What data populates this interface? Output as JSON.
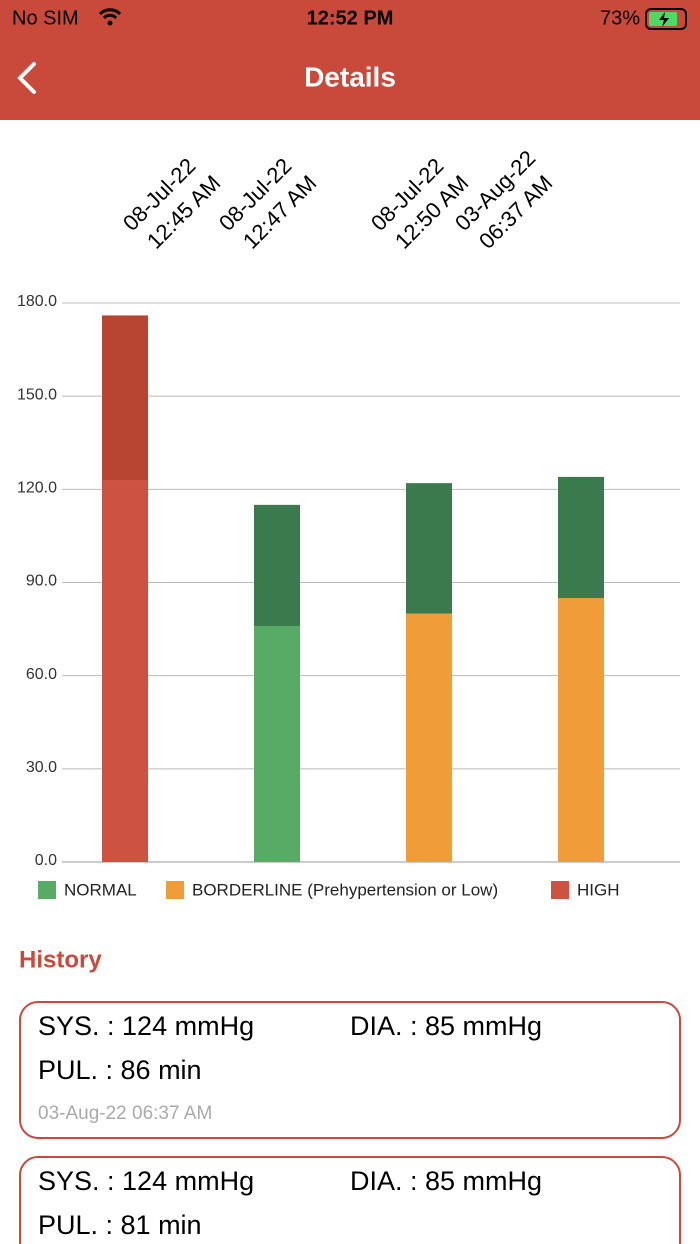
{
  "status_bar": {
    "carrier": "No SIM",
    "time": "12:52 PM",
    "battery": "73%"
  },
  "nav": {
    "title": "Details"
  },
  "chart_data": {
    "type": "stacked_bar",
    "categories": [
      [
        "08-Jul-22",
        "12:45 AM"
      ],
      [
        "08-Jul-22",
        "12:47 AM"
      ],
      [
        "08-Jul-22",
        "12:50 AM"
      ],
      [
        "03-Aug-22",
        "06:37 AM"
      ]
    ],
    "series": [
      {
        "values": [
          123,
          76,
          80,
          85
        ],
        "colors": [
          "#cd5241",
          "#57ab65",
          "#f09c38",
          "#f09c38"
        ]
      },
      {
        "values": [
          53,
          39,
          42,
          39
        ],
        "colors": [
          "#b84432",
          "#3b7a4c",
          "#3b7a4c",
          "#3b7a4c"
        ]
      }
    ],
    "ylim": [
      0,
      180
    ],
    "yticks": [
      {
        "value": 0,
        "label": "0.0"
      },
      {
        "value": 30,
        "label": "30.0"
      },
      {
        "value": 60,
        "label": "60.0"
      },
      {
        "value": 90,
        "label": "90.0"
      },
      {
        "value": 120,
        "label": "120.0"
      },
      {
        "value": 150,
        "label": "150.0"
      },
      {
        "value": 180,
        "label": "180.0"
      }
    ],
    "grid": true,
    "legend": [
      {
        "label": "NORMAL",
        "color": "#57ab65"
      },
      {
        "label": "BORDERLINE (Prehypertension or Low)",
        "color": "#f09c38"
      },
      {
        "label": "HIGH",
        "color": "#cd5241"
      }
    ]
  },
  "history": {
    "title": "History",
    "items": [
      {
        "sys": "SYS. : 124 mmHg",
        "dia": "DIA. : 85 mmHg",
        "pul": "PUL. : 86 min",
        "date": "03-Aug-22 06:37 AM"
      },
      {
        "sys": "SYS. : 124 mmHg",
        "dia": "DIA. : 85 mmHg",
        "pul": "PUL. : 81 min"
      }
    ]
  }
}
